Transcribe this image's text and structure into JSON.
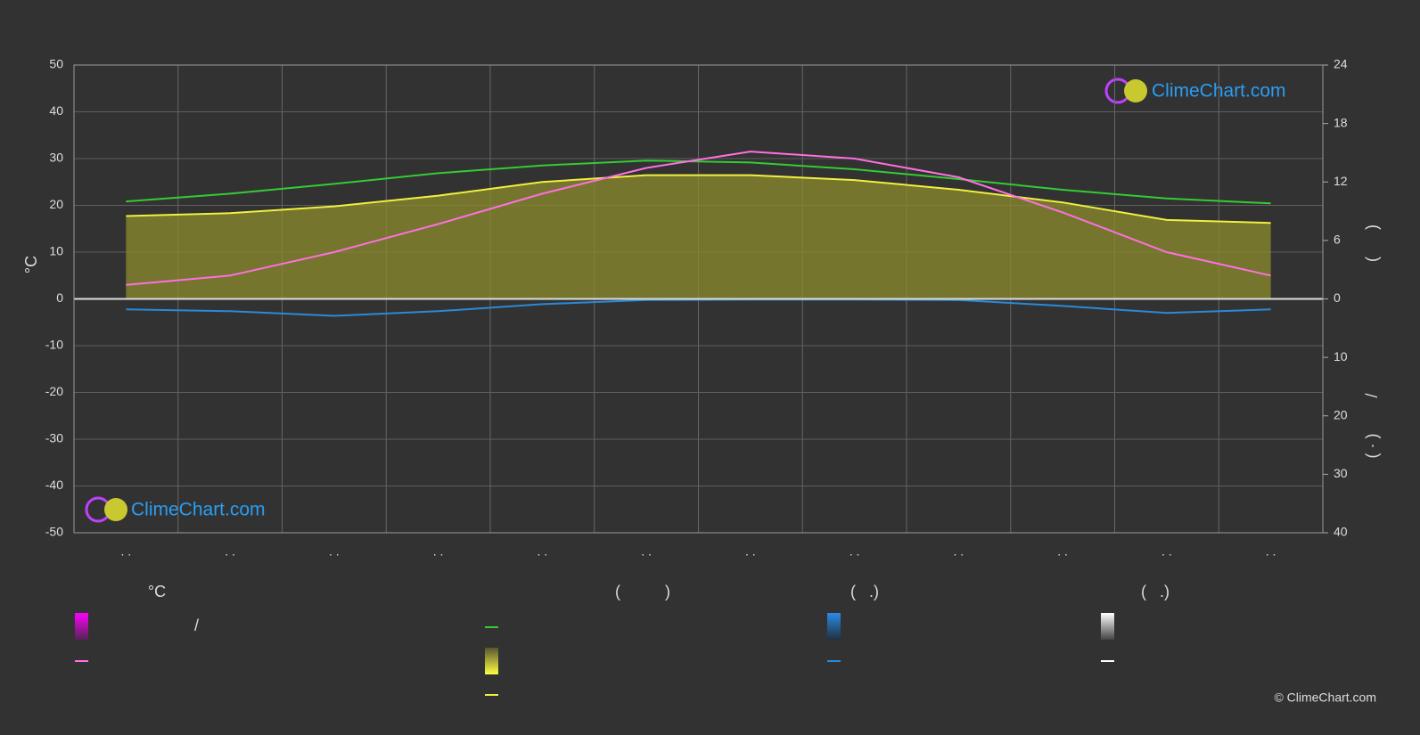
{
  "chart_data": {
    "type": "line",
    "y_label": "°C",
    "y2_label_top": "(      )",
    "y2_label_bottom": "( · )        /",
    "categories": [
      ". .",
      ". .",
      ". .",
      ". .",
      ". .",
      ". .",
      ". .",
      ". .",
      ". .",
      ". .",
      ". .",
      ". ."
    ],
    "ylim": [
      -50,
      50
    ],
    "yticks": [
      50,
      40,
      30,
      20,
      10,
      0,
      -10,
      -20,
      -30,
      -40,
      -50
    ],
    "y2lim": [
      0,
      24
    ],
    "y2ticks": [
      24,
      18,
      12,
      6,
      0
    ],
    "y3lim": [
      0,
      40
    ],
    "y3ticks": [
      10,
      20,
      30,
      40
    ],
    "grid": true,
    "series": [
      {
        "color": "#33cc33",
        "axis": "y2",
        "values": [
          10.0,
          10.8,
          11.8,
          12.9,
          13.7,
          14.2,
          14.0,
          13.3,
          12.3,
          11.2,
          10.3,
          9.8
        ]
      },
      {
        "color": "#f0f040",
        "axis": "y2",
        "fill": "#8c8c2c",
        "values": [
          8.5,
          8.8,
          9.5,
          10.6,
          12.0,
          12.7,
          12.7,
          12.2,
          11.2,
          9.9,
          8.1,
          7.8
        ]
      },
      {
        "color": "#ff70e0",
        "values": [
          3,
          5,
          10,
          16,
          22.5,
          28,
          31.5,
          30,
          26,
          18.5,
          10,
          5
        ]
      },
      {
        "color": "#2a8ad8",
        "axis": "y3",
        "values": [
          1.8,
          2.1,
          2.9,
          2.1,
          0.9,
          0.2,
          0.1,
          0.1,
          0.2,
          1.2,
          2.4,
          1.8
        ]
      }
    ],
    "legend_headers": [
      "°C",
      "(          )",
      "(   .)",
      "(   .)"
    ],
    "legend_item_text": "/",
    "logo_text": "ClimeChart.com",
    "copyright": "© ClimeChart.com"
  }
}
